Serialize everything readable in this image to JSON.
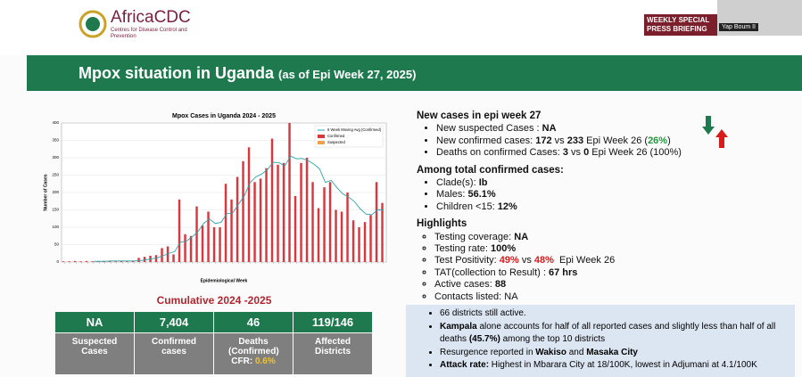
{
  "header": {
    "logo": "AfricaCDC",
    "logo_sub": "Centres for Disease Control and Prevention",
    "briefing": "WEEKLY SPECIAL PRESS BRIEFING",
    "speaker": "Yap Boum II"
  },
  "slide": {
    "title": "Mpox situation in Uganda",
    "subtitle": "(as of Epi Week 27, 2025)"
  },
  "chart_data": {
    "type": "bar",
    "title": "Mpox Cases in Uganda 2024 - 2025",
    "x_label": "Epidemiological Week",
    "y_label": "Number of Cases",
    "categories": [
      null,
      null,
      null,
      null,
      null,
      null,
      null,
      null,
      null,
      null,
      null,
      null,
      null,
      null,
      null,
      null,
      null,
      null,
      null,
      null,
      null,
      null,
      null,
      null,
      null,
      null,
      null,
      null,
      null,
      null,
      null,
      null,
      null,
      null,
      null,
      null,
      null,
      null,
      null,
      null,
      null,
      null,
      null,
      null,
      null,
      null,
      null,
      null,
      null,
      null,
      null,
      null,
      null,
      null,
      null,
      null
    ],
    "series": [
      {
        "name": "Confirmed",
        "color": "#d9363e",
        "values": [
          2,
          2,
          3,
          2,
          3,
          2,
          2,
          3,
          3,
          2,
          3,
          2,
          4,
          12,
          15,
          18,
          20,
          40,
          45,
          22,
          180,
          80,
          75,
          160,
          105,
          145,
          100,
          100,
          225,
          180,
          245,
          290,
          330,
          230,
          240,
          270,
          355,
          280,
          285,
          400,
          190,
          285,
          300,
          230,
          155,
          215,
          230,
          150,
          145,
          200,
          120,
          100,
          115,
          135,
          230,
          170
        ]
      },
      {
        "name": "Suspected",
        "color": "#f0a04b",
        "values": [
          null,
          null,
          null,
          null,
          null,
          null,
          null,
          null,
          null,
          null,
          null,
          null,
          null,
          null,
          null,
          null,
          null,
          null,
          null,
          null,
          null,
          null,
          null,
          null,
          null,
          null,
          null,
          null,
          null,
          null,
          null,
          null,
          null,
          null,
          null,
          null,
          null,
          null,
          null,
          null,
          null,
          null,
          null,
          null,
          null,
          null,
          null,
          null,
          null,
          null,
          null,
          null,
          null,
          null,
          null,
          null
        ]
      },
      {
        "name": "6 Week Moving Avg (Confirmed)",
        "color": "#2aa3a8",
        "kind": "line",
        "values": [
          null,
          null,
          null,
          null,
          null,
          2,
          2,
          2,
          3,
          3,
          3,
          3,
          3,
          4,
          6,
          9,
          12,
          18,
          25,
          30,
          57,
          60,
          72,
          87,
          111,
          124,
          111,
          114,
          139,
          141,
          166,
          190,
          228,
          245,
          253,
          266,
          287,
          286,
          277,
          305,
          297,
          298,
          292,
          282,
          268,
          229,
          235,
          214,
          196,
          187,
          174,
          153,
          138,
          136,
          150,
          150
        ]
      }
    ],
    "ylim": [
      0,
      400
    ],
    "yticks": [
      0,
      50,
      100,
      150,
      200,
      250,
      300,
      350,
      400
    ],
    "grid": true,
    "legend": "upper right"
  },
  "cumulative": {
    "title": "Cumulative 2024 -2025",
    "cells": [
      {
        "value": "NA",
        "label": "Suspected Cases"
      },
      {
        "value": "7,404",
        "label": "Confirmed cases"
      },
      {
        "value": "46",
        "label": "Deaths (Confirmed)",
        "extra": "CFR: ",
        "extra_value": "0.6%"
      },
      {
        "value": "119/146",
        "label": "Affected Districts"
      }
    ]
  },
  "sections": [
    {
      "heading": "New cases in epi week 27",
      "marker": "dot",
      "items": [
        [
          {
            "text": "New suspected Cases : "
          },
          {
            "text": "NA",
            "style": "bold"
          }
        ],
        [
          {
            "text": "New confirmed cases: "
          },
          {
            "text": "172",
            "style": "bold"
          },
          {
            "text": " vs "
          },
          {
            "text": "233",
            "style": "bold"
          },
          {
            "text": " Epi Week 26 ("
          },
          {
            "text": "26%",
            "style": "green"
          },
          {
            "text": ")"
          }
        ],
        [
          {
            "text": "Deaths on confirmed Cases: "
          },
          {
            "text": "3",
            "style": "bold"
          },
          {
            "text": " vs "
          },
          {
            "text": "0",
            "style": "bold"
          },
          {
            "text": " Epi Week 26 (100%)"
          }
        ]
      ]
    },
    {
      "heading": "Among total confirmed cases:",
      "marker": "dot",
      "items": [
        [
          {
            "text": "Clade(s): "
          },
          {
            "text": "Ib",
            "style": "bold"
          }
        ],
        [
          {
            "text": "Males: "
          },
          {
            "text": "56.1%",
            "style": "bold"
          }
        ],
        [
          {
            "text": "Children <15: "
          },
          {
            "text": "12%",
            "style": "bold"
          }
        ]
      ]
    },
    {
      "heading": "Highlights",
      "marker": "circle",
      "items": [
        [
          {
            "text": "Testing coverage: "
          },
          {
            "text": "NA",
            "style": "bold"
          }
        ],
        [
          {
            "text": "Testing rate: "
          },
          {
            "text": "100%",
            "style": "bold"
          }
        ],
        [
          {
            "text": "Test Positivity: "
          },
          {
            "text": "49%",
            "style": "red"
          },
          {
            "text": " vs "
          },
          {
            "text": "48%",
            "style": "red"
          },
          {
            "text": "  Epi Week 26"
          }
        ],
        [
          {
            "text": "TAT(collection to Result) : "
          },
          {
            "text": "67 hrs",
            "style": "bold"
          }
        ],
        [
          {
            "text": "Active cases: "
          },
          {
            "text": "88",
            "style": "bold"
          }
        ],
        [
          {
            "text": "Contacts listed: NA"
          }
        ]
      ]
    }
  ],
  "box": [
    [
      {
        "text": "66 districts still active."
      }
    ],
    [
      {
        "text": "Kampala",
        "style": "bold"
      },
      {
        "text": " alone accounts for half of all reported cases and slightly less than half of all deaths "
      },
      {
        "text": "(45.7%)",
        "style": "bold"
      },
      {
        "text": " among the top 10 districts"
      }
    ],
    [
      {
        "text": "Resurgence reported in "
      },
      {
        "text": "Wakiso",
        "style": "bold"
      },
      {
        "text": " and "
      },
      {
        "text": "Masaka City",
        "style": "bold"
      }
    ],
    [
      {
        "text": "Attack rate:",
        "style": "bold"
      },
      {
        "text": " Highest in Mbarara City at 18/100K, lowest in Adjumani at 4.1/100K"
      }
    ]
  ]
}
